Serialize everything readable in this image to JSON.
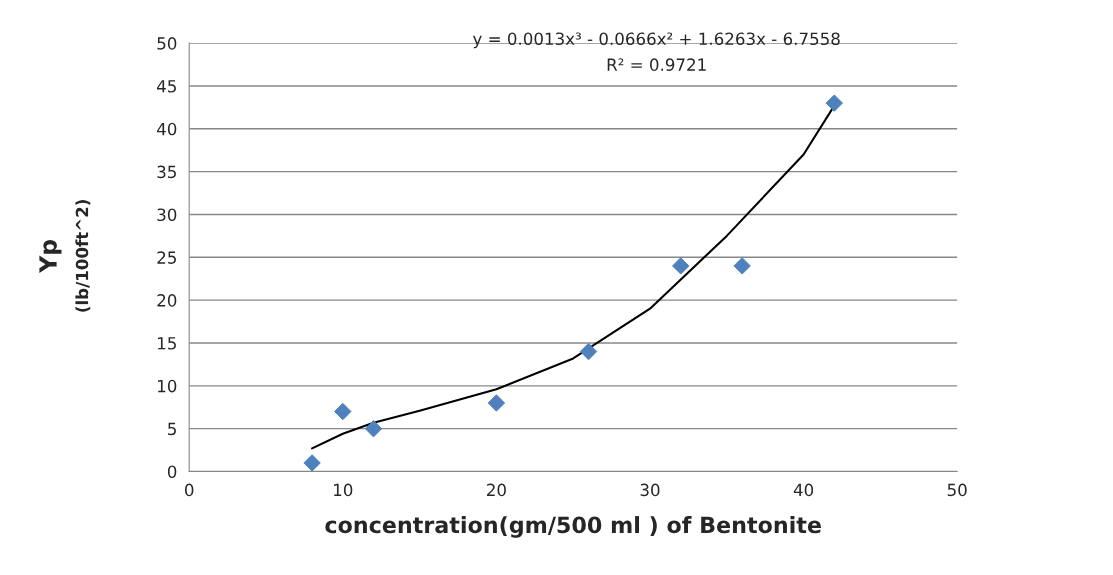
{
  "chart_data": {
    "type": "scatter",
    "xlabel": "concentration(gm/500 ml ) of Bentonite",
    "ylabel": "Yp\n(lb/100ft^2)",
    "xlim": [
      0,
      50
    ],
    "xticks": [
      0,
      10,
      20,
      30,
      40,
      50
    ],
    "ylim": [
      0,
      50
    ],
    "yticks": [
      0,
      5,
      10,
      15,
      20,
      25,
      30,
      35,
      40,
      45,
      50
    ],
    "grid": "y",
    "marker": "diamond",
    "series": [
      {
        "color": "#4f81bd",
        "x": [
          8,
          10,
          12,
          20,
          26,
          32,
          36,
          42
        ],
        "values": [
          1,
          7,
          5,
          8,
          14,
          24,
          24,
          43
        ]
      },
      {
        "type": "line",
        "color": "#000000",
        "marker": "none",
        "line_style": "solid",
        "x": [
          8,
          10,
          12,
          15,
          20,
          25,
          30,
          35,
          40,
          42
        ],
        "values": [
          2.7,
          4.4,
          5.7,
          7.1,
          9.6,
          13.2,
          19.0,
          27.5,
          37.0,
          42.7
        ]
      }
    ],
    "annotations": [
      "y = 0.0013x³ - 0.0666x² + 1.6263x - 6.7558",
      "R² = 0.9721"
    ]
  }
}
